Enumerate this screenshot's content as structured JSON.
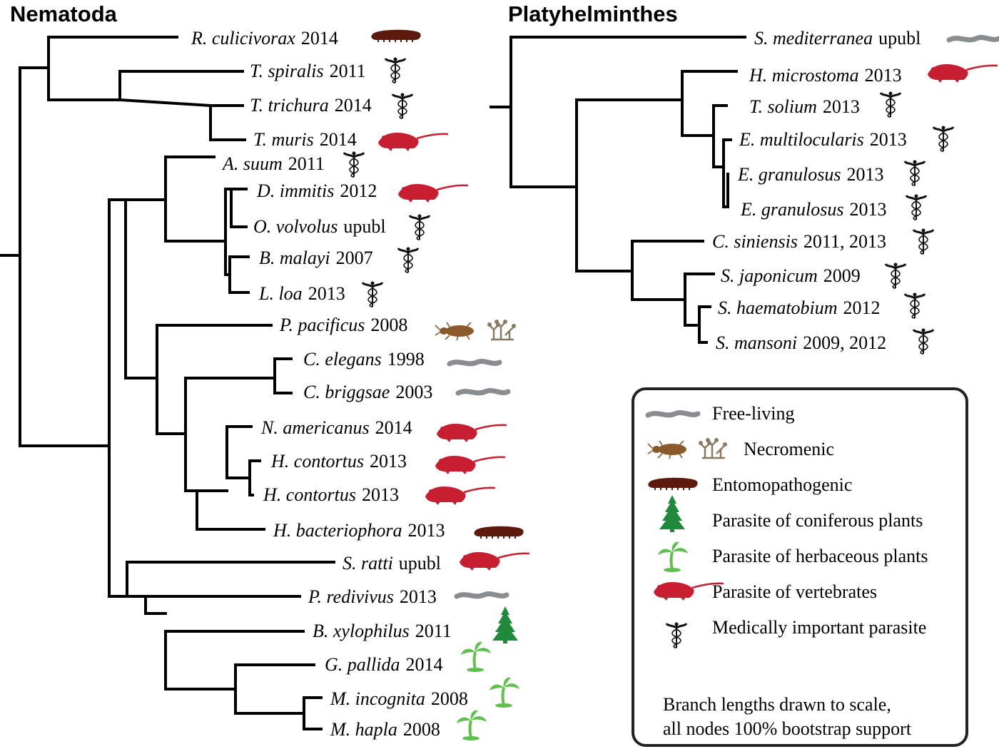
{
  "nematoda": {
    "title": "Nematoda",
    "tips": [
      {
        "name": "R. culicivorax",
        "year": "2014",
        "icons": [
          "caterpillar-icon"
        ]
      },
      {
        "name": "T. spiralis",
        "year": "2011",
        "icons": [
          "caduceus-icon"
        ]
      },
      {
        "name": "T. trichura",
        "year": "2014",
        "icons": [
          "caduceus-icon"
        ]
      },
      {
        "name": "T. muris",
        "year": "2014",
        "icons": [
          "rat-icon"
        ]
      },
      {
        "name": "A. suum",
        "year": "2011",
        "icons": [
          "caduceus-icon"
        ]
      },
      {
        "name": "D. immitis",
        "year": "2012",
        "icons": [
          "rat-icon"
        ]
      },
      {
        "name": "O. volvolus",
        "year": "upubl",
        "icons": [
          "caduceus-icon"
        ]
      },
      {
        "name": "B. malayi",
        "year": "2007",
        "icons": [
          "caduceus-icon"
        ]
      },
      {
        "name": "L. loa",
        "year": "2013",
        "icons": [
          "caduceus-icon"
        ]
      },
      {
        "name": "P. pacificus",
        "year": "2008",
        "icons": [
          "beetle-icon",
          "fungus-icon"
        ]
      },
      {
        "name": "C. elegans",
        "year": "1998",
        "icons": [
          "worm-icon"
        ]
      },
      {
        "name": "C. briggsae",
        "year": "2003",
        "icons": [
          "worm-icon"
        ]
      },
      {
        "name": "N. americanus",
        "year": "2014",
        "icons": [
          "rat-icon"
        ]
      },
      {
        "name": "H. contortus",
        "year": "2013",
        "icons": [
          "rat-icon"
        ]
      },
      {
        "name": "H. contortus",
        "year": "2013",
        "icons": [
          "rat-icon"
        ]
      },
      {
        "name": "H. bacteriophora",
        "year": "2013",
        "icons": [
          "caterpillar-icon"
        ]
      },
      {
        "name": "S. ratti",
        "year": "upubl",
        "icons": [
          "rat-icon"
        ]
      },
      {
        "name": "P. redivivus",
        "year": "2013",
        "icons": [
          "worm-icon"
        ]
      },
      {
        "name": "B. xylophilus",
        "year": "2011",
        "icons": [
          "conifer-icon"
        ]
      },
      {
        "name": "G. pallida",
        "year": "2014",
        "icons": [
          "herb-plant-icon"
        ]
      },
      {
        "name": "M. incognita",
        "year": "2008",
        "icons": [
          "herb-plant-icon"
        ]
      },
      {
        "name": "M. hapla",
        "year": "2008",
        "icons": [
          "herb-plant-icon"
        ]
      }
    ]
  },
  "platyhelminthes": {
    "title": "Platyhelminthes",
    "tips": [
      {
        "name": "S. mediterranea",
        "year": "upubl",
        "icons": [
          "worm-icon"
        ]
      },
      {
        "name": "H. microstoma",
        "year": "2013",
        "icons": [
          "rat-icon"
        ]
      },
      {
        "name": "T. solium",
        "year": "2013",
        "icons": [
          "caduceus-icon"
        ]
      },
      {
        "name": "E. multilocularis",
        "year": "2013",
        "icons": [
          "caduceus-icon"
        ]
      },
      {
        "name": "E. granulosus",
        "year": "2013",
        "icons": [
          "caduceus-icon"
        ]
      },
      {
        "name": "E. granulosus",
        "year": "2013",
        "icons": [
          "caduceus-icon"
        ]
      },
      {
        "name": "C. siniensis",
        "year": "2011, 2013",
        "icons": [
          "caduceus-icon"
        ]
      },
      {
        "name": "S. japonicum",
        "year": "2009",
        "icons": [
          "caduceus-icon"
        ]
      },
      {
        "name": "S. haematobium",
        "year": "2012",
        "icons": [
          "caduceus-icon"
        ]
      },
      {
        "name": "S. mansoni",
        "year": "2009, 2012",
        "icons": [
          "caduceus-icon"
        ]
      }
    ]
  },
  "legend": {
    "items": [
      {
        "label": "Free-living",
        "icons": [
          "worm-icon"
        ]
      },
      {
        "label": "Necromenic",
        "icons": [
          "beetle-icon",
          "fungus-icon"
        ]
      },
      {
        "label": "Entomopathogenic",
        "icons": [
          "caterpillar-icon"
        ]
      },
      {
        "label": "Parasite of coniferous plants",
        "icons": [
          "conifer-icon"
        ]
      },
      {
        "label": "Parasite of herbaceous plants",
        "icons": [
          "herb-plant-icon"
        ]
      },
      {
        "label": "Parasite of vertebrates",
        "icons": [
          "rat-icon"
        ]
      },
      {
        "label": "Medically important parasite",
        "icons": [
          "caduceus-icon"
        ]
      }
    ],
    "note_line1": "Branch lengths drawn to scale,",
    "note_line2": "all nodes 100% bootstrap support"
  },
  "colors": {
    "worm": "#8a8d90",
    "beetle": "#8b5a2b",
    "fungus": "#8a7a62",
    "caterpillar": "#5c1a0c",
    "conifer": "#1f8a3c",
    "herb": "#5fc04f",
    "rat": "#c81e32",
    "caduceus": "#111111"
  }
}
